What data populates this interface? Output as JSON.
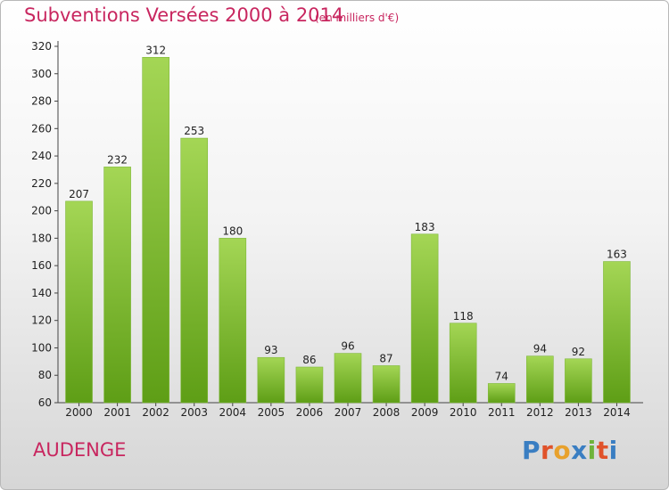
{
  "header": {
    "title": "Subventions Versées 2000 à 2014",
    "subtitle": "(en milliers d'€)"
  },
  "footer": {
    "commune": "AUDENGE",
    "logo_text": "Proxiti"
  },
  "colors": {
    "title": "#c8265f",
    "bar_top": "#a4d655",
    "bar_bottom": "#5e9e16",
    "logo": [
      "#3a7ec2",
      "#e0522a",
      "#e8a12c",
      "#3a7ec2",
      "#6fb33a",
      "#e0522a",
      "#3a7ec2"
    ]
  },
  "chart_data": {
    "type": "bar",
    "categories": [
      "2000",
      "2001",
      "2002",
      "2003",
      "2004",
      "2005",
      "2006",
      "2007",
      "2008",
      "2009",
      "2010",
      "2011",
      "2012",
      "2013",
      "2014"
    ],
    "values": [
      207,
      232,
      312,
      253,
      180,
      93,
      86,
      96,
      87,
      183,
      118,
      74,
      94,
      92,
      163
    ],
    "ylim": [
      60,
      320
    ],
    "yticks": [
      60,
      80,
      100,
      120,
      140,
      160,
      180,
      200,
      220,
      240,
      260,
      280,
      300,
      320
    ],
    "grid": false,
    "show_value_labels": true
  }
}
